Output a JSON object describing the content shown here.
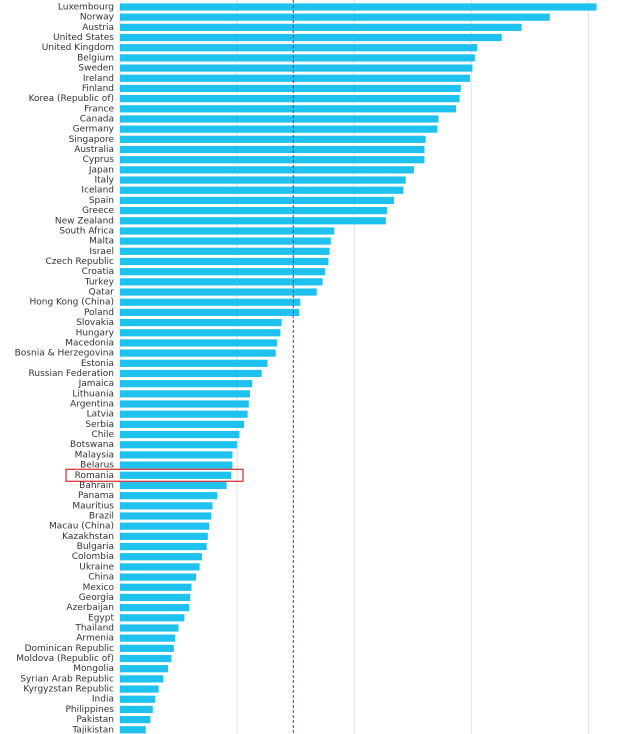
{
  "chart_data": {
    "type": "hbar",
    "categories": [
      "Luxembourg",
      "Norway",
      "Austria",
      "United States",
      "United Kingdom",
      "Belgium",
      "Sweden",
      "Ireland",
      "Finland",
      "Korea (Republic of)",
      "France",
      "Canada",
      "Germany",
      "Singapore",
      "Australia",
      "Cyprus",
      "Japan",
      "Italy",
      "Iceland",
      "Spain",
      "Greece",
      "New Zealand",
      "South Africa",
      "Malta",
      "Israel",
      "Czech Republic",
      "Croatia",
      "Turkey",
      "Qatar",
      "Hong Kong (China)",
      "Poland",
      "Slovakia",
      "Hungary",
      "Macedonia",
      "Bosnia & Herzegovina",
      "Estonia",
      "Russian Federation",
      "Jamaica",
      "Lithuania",
      "Argentina",
      "Latvia",
      "Serbia",
      "Chile",
      "Botswana",
      "Malaysia",
      "Belarus",
      "Romania",
      "Bahrain",
      "Panama",
      "Mauritius",
      "Brazil",
      "Macau (China)",
      "Kazakhstan",
      "Bulgaria",
      "Colombia",
      "Ukraine",
      "China",
      "Mexico",
      "Georgia",
      "Azerbaijan",
      "Egypt",
      "Thailand",
      "Armenia",
      "Dominican Republic",
      "Moldova (Republic of)",
      "Mongolia",
      "Syrian Arab Republic",
      "Kyrgyzstan Republic",
      "India",
      "Philippines",
      "Pakistan",
      "Tajikistan"
    ],
    "values": [
      407,
      367,
      343,
      326,
      305,
      303,
      301,
      299,
      291,
      290,
      287,
      272,
      271,
      261,
      260,
      260,
      251,
      244,
      242,
      234,
      228,
      227,
      183,
      180,
      179,
      178,
      175,
      173,
      168,
      154,
      153,
      138,
      137,
      134,
      133,
      126,
      121,
      113,
      111,
      110,
      109,
      106,
      102,
      100,
      96,
      96,
      95,
      91,
      83,
      79,
      78,
      76,
      75,
      74,
      70,
      68,
      65,
      61,
      60,
      59,
      55,
      50,
      47,
      46,
      44,
      41,
      37,
      33,
      30,
      28,
      26,
      22
    ],
    "color": "#1fc2ee",
    "xlim": [
      0,
      427
    ],
    "xticks": [
      0,
      100,
      200,
      300,
      400
    ],
    "grid": true,
    "reference_line": 148,
    "reference_color": "#c0202a",
    "highlight_index": 46,
    "highlight_color": "#d8282f"
  }
}
